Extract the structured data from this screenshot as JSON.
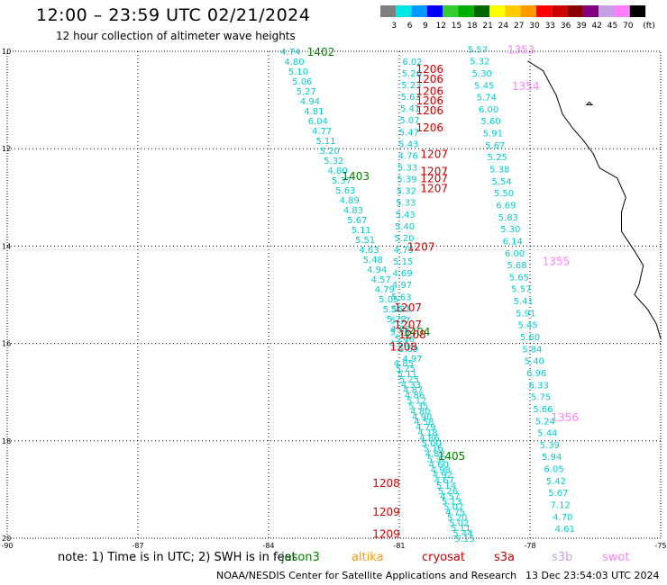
{
  "header": {
    "title": "12:00 – 23:59 UTC 02/21/2024",
    "subtitle": "12 hour collection of altimeter wave heights"
  },
  "colorbar": {
    "unit_label": "(ft)",
    "bins": [
      {
        "color": "#7f7f7f",
        "label": "3"
      },
      {
        "color": "#00e5e5",
        "label": "6"
      },
      {
        "color": "#0099ff",
        "label": "9"
      },
      {
        "color": "#0000ff",
        "label": "12"
      },
      {
        "color": "#33cc33",
        "label": "15"
      },
      {
        "color": "#00b000",
        "label": "18"
      },
      {
        "color": "#006600",
        "label": "21"
      },
      {
        "color": "#ffff00",
        "label": "24"
      },
      {
        "color": "#ffcc00",
        "label": "27"
      },
      {
        "color": "#ff9900",
        "label": "30"
      },
      {
        "color": "#ff0000",
        "label": "33"
      },
      {
        "color": "#cc0000",
        "label": "36"
      },
      {
        "color": "#8b0000",
        "label": "39"
      },
      {
        "color": "#800080",
        "label": "42"
      },
      {
        "color": "#c8a0e6",
        "label": "45"
      },
      {
        "color": "#ff80ff",
        "label": "70"
      },
      {
        "color": "#000000",
        "label": ""
      }
    ]
  },
  "map": {
    "lat_labels": [
      "10",
      "12",
      "14",
      "16",
      "18",
      "20"
    ],
    "lon_labels": [
      "-90",
      "-87",
      "-84",
      "-81",
      "-78",
      "-75"
    ],
    "lat_range": [
      10,
      20
    ],
    "lon_range": [
      -90,
      -75
    ],
    "grid": true,
    "coast_color": "#000000"
  },
  "time_labels": [
    {
      "text": "1402",
      "color": "#008000",
      "lon": -82.8,
      "lat": 10.0
    },
    {
      "text": "1403",
      "color": "#008000",
      "lon": -82.0,
      "lat": 12.55
    },
    {
      "text": "1404",
      "color": "#008000",
      "lon": -80.6,
      "lat": 15.75
    },
    {
      "text": "1405",
      "color": "#008000",
      "lon": -79.8,
      "lat": 18.3
    },
    {
      "text": "1206",
      "color": "#cc0000",
      "lon": -80.3,
      "lat": 10.35
    },
    {
      "text": "1206",
      "color": "#cc0000",
      "lon": -80.3,
      "lat": 10.55
    },
    {
      "text": "1206",
      "color": "#cc0000",
      "lon": -80.3,
      "lat": 10.8
    },
    {
      "text": "1206",
      "color": "#cc0000",
      "lon": -80.3,
      "lat": 11.0
    },
    {
      "text": "1206",
      "color": "#cc0000",
      "lon": -80.3,
      "lat": 11.2
    },
    {
      "text": "1206",
      "color": "#cc0000",
      "lon": -80.3,
      "lat": 11.55
    },
    {
      "text": "1207",
      "color": "#cc0000",
      "lon": -80.2,
      "lat": 12.1
    },
    {
      "text": "1207",
      "color": "#cc0000",
      "lon": -80.2,
      "lat": 12.45
    },
    {
      "text": "1207",
      "color": "#cc0000",
      "lon": -80.2,
      "lat": 12.6
    },
    {
      "text": "1207",
      "color": "#cc0000",
      "lon": -80.2,
      "lat": 12.8
    },
    {
      "text": "1207",
      "color": "#cc0000",
      "lon": -80.5,
      "lat": 14.0
    },
    {
      "text": "1207",
      "color": "#cc0000",
      "lon": -80.8,
      "lat": 15.25
    },
    {
      "text": "1207",
      "color": "#cc0000",
      "lon": -80.8,
      "lat": 15.6
    },
    {
      "text": "1208",
      "color": "#cc0000",
      "lon": -80.7,
      "lat": 15.8
    },
    {
      "text": "1208",
      "color": "#cc0000",
      "lon": -80.9,
      "lat": 16.05
    },
    {
      "text": "1208",
      "color": "#cc0000",
      "lon": -81.3,
      "lat": 18.85
    },
    {
      "text": "1209",
      "color": "#cc0000",
      "lon": -81.3,
      "lat": 19.45
    },
    {
      "text": "1209",
      "color": "#cc0000",
      "lon": -81.3,
      "lat": 19.9
    },
    {
      "text": "1353",
      "color": "#ff80ff",
      "lon": -78.2,
      "lat": 9.95
    },
    {
      "text": "1354",
      "color": "#ff80ff",
      "lon": -78.1,
      "lat": 10.7
    },
    {
      "text": "1355",
      "color": "#ff80ff",
      "lon": -77.4,
      "lat": 14.3
    },
    {
      "text": "1356",
      "color": "#ff80ff",
      "lon": -77.2,
      "lat": 17.5
    }
  ],
  "tracks": [
    {
      "name": "jason",
      "color": "#00cccc",
      "start": [
        -83.5,
        10.0
      ],
      "end": [
        -80.7,
        16.3
      ],
      "values": [
        "4.74",
        "4.80",
        "5.10",
        "5.06",
        "5.27",
        "4.94",
        "4.81",
        "6.04",
        "4.77",
        "5.11",
        "5.20",
        "5.32",
        "4.80",
        "5.37",
        "5.63",
        "4.89",
        "4.83",
        "5.67",
        "5.11",
        "5.51",
        "4.63",
        "5.48",
        "4.94",
        "4.57",
        "4.79",
        "5.05",
        "5.56",
        "5.72",
        "4.82",
        "5.46",
        "5.69",
        "4.97"
      ]
    },
    {
      "name": "jason2",
      "color": "#00cccc",
      "start": [
        -80.9,
        16.4
      ],
      "end": [
        -79.5,
        20.0
      ],
      "values": [
        "4.85",
        "5.25",
        "5.11",
        "5.25",
        "4.33",
        "4.87",
        "4.86",
        "5.12",
        "5.35",
        "4.80",
        "4.90",
        "4.58",
        "4.79",
        "4.18",
        "4.86",
        "5.00",
        "5.16",
        "4.82",
        "5.32",
        "4.60",
        "4.98",
        "4.92",
        "4.67",
        "5.14",
        "5.26",
        "4.57",
        "5.13",
        "5.07",
        "4.75",
        "5.20",
        "5.02",
        "5.11",
        "5.44",
        "5.15"
      ]
    },
    {
      "name": "cryosat",
      "color": "#00cccc",
      "start": [
        -80.7,
        10.2
      ],
      "end": [
        -81.0,
        16.0
      ],
      "values": [
        "6.02",
        "5.26",
        "5.23",
        "5.63",
        "5.41",
        "5.07",
        "5.47",
        "5.43",
        "4.76",
        "5.33",
        "5.39",
        "5.32",
        "5.33",
        "5.43",
        "5.40",
        "5.20",
        "4.79",
        "5.15",
        "4.69",
        "4.97",
        "5.63",
        "5.21",
        "5.17",
        "5.16",
        "4.66"
      ]
    },
    {
      "name": "swot",
      "color": "#00cccc",
      "start": [
        -79.2,
        9.95
      ],
      "end": [
        -77.2,
        19.8
      ],
      "values": [
        "5.57",
        "5.32",
        "5.30",
        "5.45",
        "5.74",
        "6.00",
        "5.60",
        "5.91",
        "5.67",
        "5.25",
        "5.38",
        "5.54",
        "5.50",
        "6.69",
        "5.83",
        "5.30",
        "6.14",
        "6.00",
        "5.68",
        "5.65",
        "5.57",
        "5.41",
        "5.91",
        "5.45",
        "5.60",
        "5.84",
        "5.40",
        "6.96",
        "6.33",
        "5.75",
        "5.66",
        "5.24",
        "5.44",
        "5.39",
        "5.94",
        "6.05",
        "5.42",
        "5.67",
        "7.12",
        "4.70",
        "4.61"
      ]
    }
  ],
  "note": {
    "text": "note:  1) Time is in UTC; 2) SWH is in feet",
    "satellites": [
      {
        "name": "jason3",
        "color": "#008000"
      },
      {
        "name": "altika",
        "color": "#ff9900"
      },
      {
        "name": "cryosat",
        "color": "#cc0000"
      },
      {
        "name": "s3a",
        "color": "#cc0000"
      },
      {
        "name": "s3b",
        "color": "#c8a0e6"
      },
      {
        "name": "swot",
        "color": "#ff80ff"
      }
    ]
  },
  "footer": {
    "credit": "NOAA/NESDIS Center for Satellite Applications and Research",
    "timestamp": "13 Dec 23:54:03 UTC 2024"
  }
}
